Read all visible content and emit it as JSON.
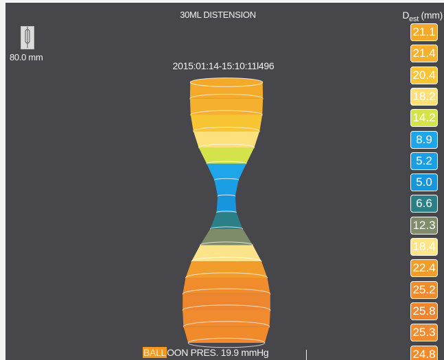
{
  "header": {
    "title": "30ML DISTENSION",
    "d_label": "D",
    "d_subscript": "est",
    "d_unit": "(mm)",
    "length": "80.0 mm",
    "timestamp": "2015:01:14-15:10:11l496"
  },
  "diameters": [
    {
      "value": 21.1,
      "label": "21.1",
      "color": "#f4a92a"
    },
    {
      "value": 21.4,
      "label": "21.4",
      "color": "#f5b030"
    },
    {
      "value": 20.4,
      "label": "20.4",
      "color": "#f8c634"
    },
    {
      "value": 18.2,
      "label": "18.2",
      "color": "#fbe07c"
    },
    {
      "value": 14.2,
      "label": "14.2",
      "color": "#d4e34a"
    },
    {
      "value": 8.9,
      "label": "8.9",
      "color": "#1ea5ea"
    },
    {
      "value": 5.2,
      "label": "5.2",
      "color": "#1c9ee5"
    },
    {
      "value": 5.0,
      "label": "5.0",
      "color": "#1896dd"
    },
    {
      "value": 6.6,
      "label": "6.6",
      "color": "#2b7f86"
    },
    {
      "value": 12.3,
      "label": "12.3",
      "color": "#7e8c6a"
    },
    {
      "value": 18.4,
      "label": "18.4",
      "color": "#fbe48a"
    },
    {
      "value": 22.4,
      "label": "22.4",
      "color": "#f29c2b"
    },
    {
      "value": 25.2,
      "label": "25.2",
      "color": "#f08c2b"
    },
    {
      "value": 25.8,
      "label": "25.8",
      "color": "#ee8630"
    },
    {
      "value": 25.3,
      "label": "25.3",
      "color": "#f08b30"
    },
    {
      "value": 24.8,
      "label": "24.8",
      "color": "#f08a2b"
    }
  ],
  "status": {
    "highlight": "BALL",
    "rest": "OON PRES. 19.9 mmHg"
  }
}
